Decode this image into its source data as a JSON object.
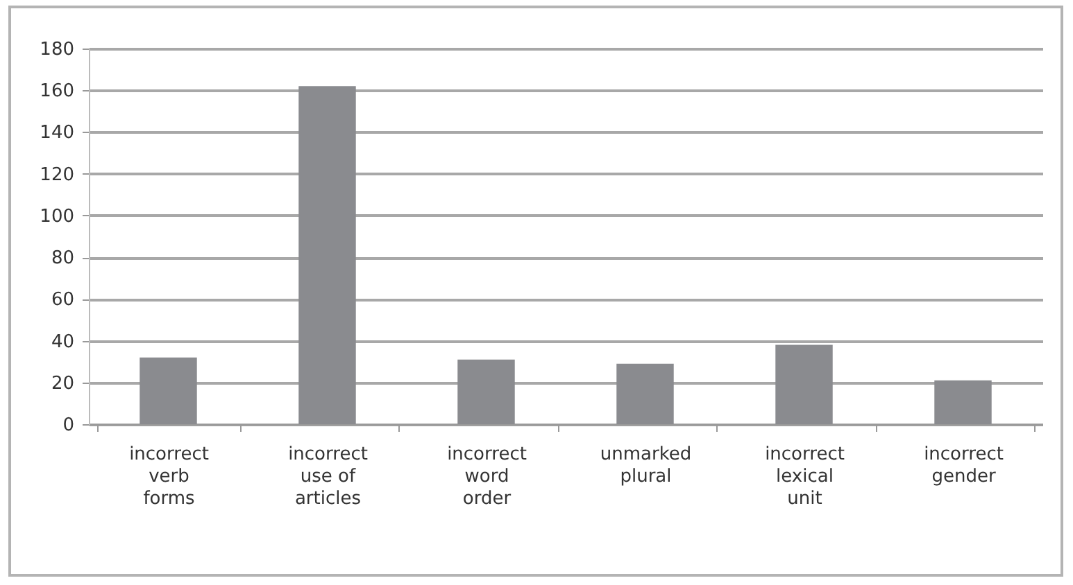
{
  "chart_data": {
    "type": "bar",
    "categories": [
      "incorrect verb forms",
      "incorrect use of articles",
      "incorrect word order",
      "unmarked plural",
      "incorrect lexical unit",
      "incorrect gender"
    ],
    "values": [
      32,
      162,
      31,
      29,
      38,
      21
    ],
    "color": "#8a8b8f",
    "ylim": [
      0,
      180
    ],
    "yticks": [
      0,
      20,
      40,
      60,
      80,
      100,
      120,
      140,
      160,
      180
    ],
    "grid": "y"
  }
}
